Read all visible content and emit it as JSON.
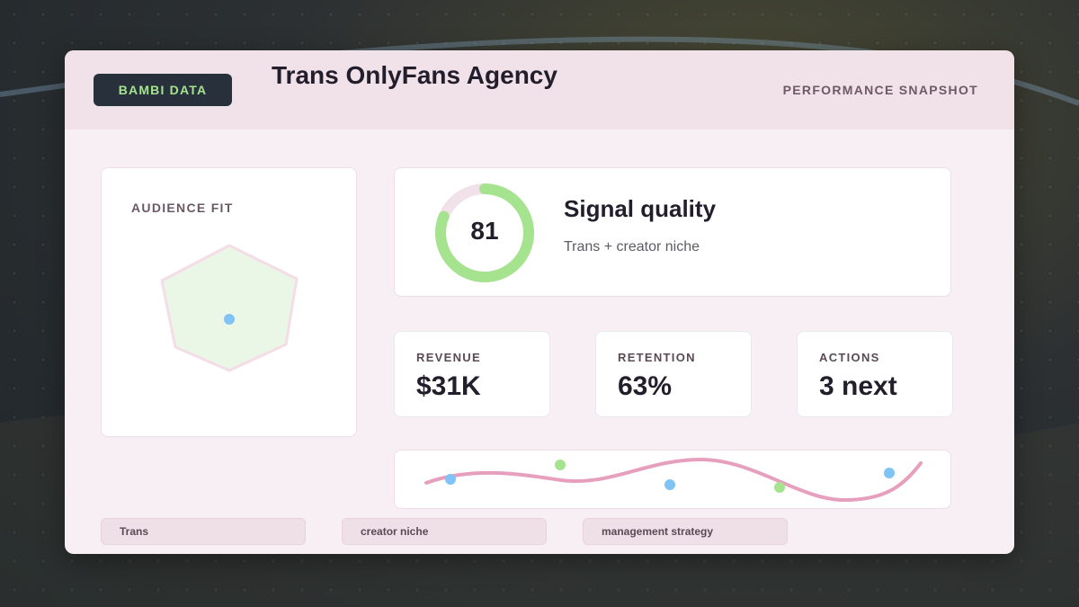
{
  "header": {
    "brand": "BAMBI DATA",
    "title": "Trans OnlyFans Agency",
    "subtitle": "PERFORMANCE SNAPSHOT"
  },
  "audience_fit": {
    "label": "AUDIENCE FIT"
  },
  "signal": {
    "score": "81",
    "score_fraction": 0.81,
    "title": "Signal quality",
    "subtitle": "Trans + creator niche"
  },
  "stats": [
    {
      "label": "REVENUE",
      "value": "$31K"
    },
    {
      "label": "RETENTION",
      "value": "63%"
    },
    {
      "label": "ACTIONS",
      "value": "3 next"
    }
  ],
  "tags": [
    "Trans",
    "creator niche",
    "management strategy"
  ],
  "colors": {
    "accent_green": "#a6e38e",
    "accent_pink": "#e6a0bd",
    "accent_blue": "#7fc3f7",
    "brand_bg": "#28303c"
  }
}
